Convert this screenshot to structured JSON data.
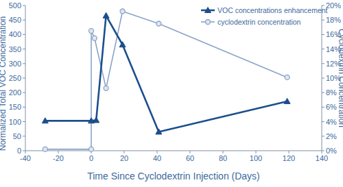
{
  "chart_data": {
    "type": "line",
    "x_label": "Time Since Cyclodextrin Injection (Days)",
    "y_label": "Normalized Total VOC Concentration",
    "y2_label": "Cyclodextrin Concentration",
    "xlim": [
      -40,
      140
    ],
    "xticks": [
      -40,
      -20,
      0,
      20,
      40,
      60,
      80,
      100,
      120,
      140
    ],
    "ylim": [
      0,
      500
    ],
    "yticks": [
      0,
      50,
      100,
      150,
      200,
      250,
      300,
      350,
      400,
      450,
      500
    ],
    "y2lim": [
      0,
      20
    ],
    "y2ticks": [
      {
        "value": 0,
        "label": "0%"
      },
      {
        "value": 2,
        "label": "2%"
      },
      {
        "value": 4,
        "label": "4%"
      },
      {
        "value": 6,
        "label": "6%"
      },
      {
        "value": 8,
        "label": "8%"
      },
      {
        "value": 10,
        "label": "10%"
      },
      {
        "value": 12,
        "label": "12%"
      },
      {
        "value": 14,
        "label": "14%"
      },
      {
        "value": 16,
        "label": "16%"
      },
      {
        "value": 18,
        "label": "18%"
      },
      {
        "value": 20,
        "label": "20%"
      }
    ],
    "grid": false,
    "legend": "upper right",
    "series": [
      {
        "name": "VOC concentrations enhancement",
        "color": "#1b4f8c",
        "marker": "triangle",
        "line_style": "solid",
        "x": [
          -28,
          0,
          3,
          9,
          19,
          41,
          119
        ],
        "values": [
          103,
          103,
          105,
          465,
          365,
          65,
          170
        ]
      },
      {
        "name": "cyclodextrin concentration",
        "color": "#8ba3c7",
        "marker": "circle",
        "line_style": "solid",
        "axis": "y2",
        "x": [
          -28,
          0,
          0,
          2,
          9,
          19,
          41,
          119
        ],
        "values": [
          0.2,
          0.2,
          16.5,
          15.5,
          8.6,
          19.2,
          17.5,
          10.1
        ]
      }
    ]
  }
}
